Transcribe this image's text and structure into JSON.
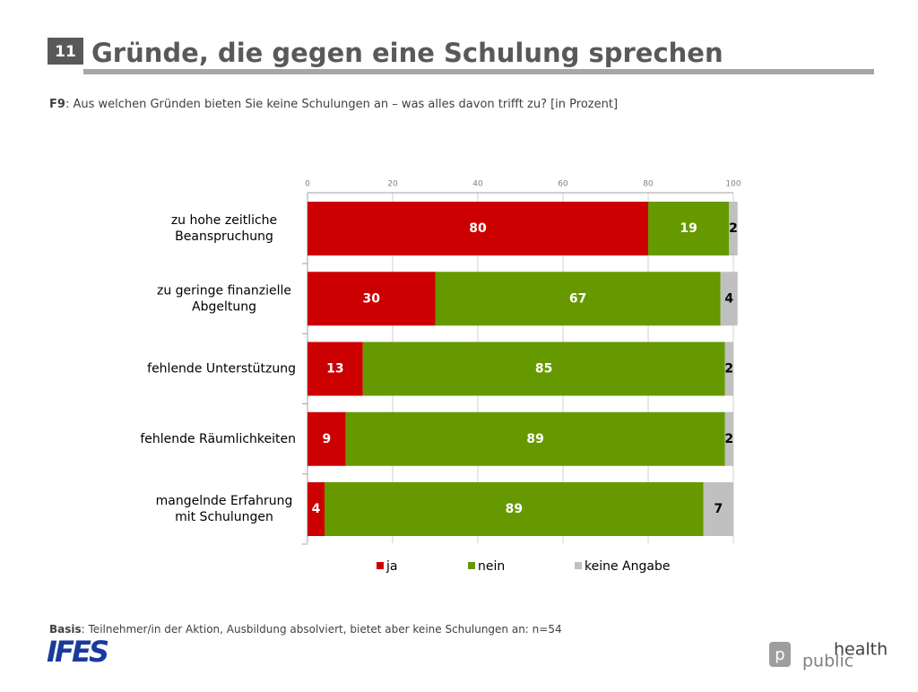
{
  "slide_number": "11",
  "title": "Gründe, die gegen eine Schulung sprechen",
  "question_label": "F9",
  "question": ": Aus welchen Gründen bieten Sie keine Schulungen an – was alles davon trifft zu? [in Prozent]",
  "basis_label": "Basis",
  "basis": ": Teilnehmer/in der Aktion, Ausbildung absolviert, bietet aber keine Schulungen an: n=54",
  "logo_left": "IFES",
  "logo_right": {
    "icon": "p",
    "line1": "health",
    "line2": "public"
  },
  "chart_data": {
    "type": "stacked_bar_horizontal",
    "categories": [
      "zu hohe zeitliche\nBeanspruchung",
      "zu geringe finanzielle\nAbgeltung",
      "fehlende Unterstützung",
      "fehlende Räumlichkeiten",
      "mangelnde Erfahrung\nmit Schulungen"
    ],
    "series": [
      {
        "name": "ja",
        "color": "#cc0000",
        "label_color": "#ffffff",
        "values": [
          80,
          30,
          13,
          9,
          4
        ]
      },
      {
        "name": "nein",
        "color": "#669900",
        "label_color": "#ffffff",
        "values": [
          19,
          67,
          85,
          89,
          89
        ]
      },
      {
        "name": "keine Angabe",
        "color": "#c0c0c0",
        "label_color": "#000000",
        "values": [
          2,
          4,
          2,
          2,
          7
        ]
      }
    ],
    "xlim": [
      0,
      100
    ],
    "xticks": [
      0,
      20,
      40,
      60,
      80,
      100
    ],
    "grid": true,
    "legend": "bottom"
  }
}
